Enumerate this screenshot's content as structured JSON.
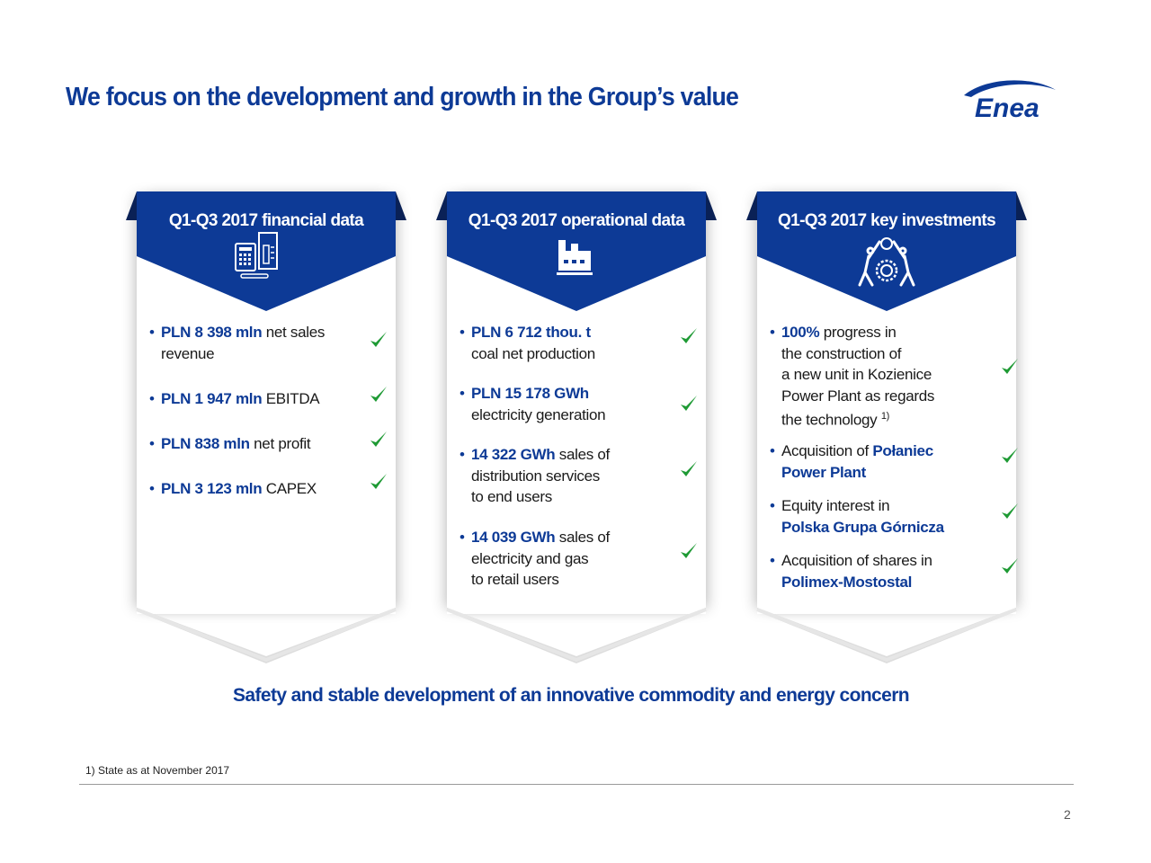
{
  "title": "We focus on the development and growth in the Group’s value",
  "logo": "Enea",
  "colors": {
    "brand": "#0d3a96",
    "check": "#1e9a34"
  },
  "columns": [
    {
      "heading": "Q1-Q3 2017 financial data",
      "icon": "calculator-document-icon",
      "items": [
        {
          "lines": [
            [
              {
                "t": "PLN 8 398 mln",
                "b": true
              },
              {
                "t": " net sales"
              }
            ],
            [
              {
                "t": "revenue"
              }
            ]
          ]
        },
        {
          "lines": [
            [
              {
                "t": "PLN 1 947 mln",
                "b": true
              },
              {
                "t": " EBITDA"
              }
            ]
          ]
        },
        {
          "lines": [
            [
              {
                "t": "PLN 838 mln",
                "b": true
              },
              {
                "t": " net profit"
              }
            ]
          ]
        },
        {
          "lines": [
            [
              {
                "t": "PLN 3 123 mln",
                "b": true
              },
              {
                "t": " CAPEX"
              }
            ]
          ]
        }
      ]
    },
    {
      "heading": "Q1-Q3 2017 operational data",
      "icon": "factory-icon",
      "items": [
        {
          "lines": [
            [
              {
                "t": "PLN 6 712 thou. t",
                "b": true
              }
            ],
            [
              {
                "t": "coal net production"
              }
            ]
          ]
        },
        {
          "lines": [
            [
              {
                "t": "PLN 15 178 GWh",
                "b": true
              }
            ],
            [
              {
                "t": "electricity generation"
              }
            ]
          ]
        },
        {
          "lines": [
            [
              {
                "t": "14 322 GWh",
                "b": true
              },
              {
                "t": " sales of"
              }
            ],
            [
              {
                "t": "distribution services"
              }
            ],
            [
              {
                "t": "to end users"
              }
            ]
          ]
        },
        {
          "lines": [
            [
              {
                "t": "14 039 GWh",
                "b": true
              },
              {
                "t": " sales of"
              }
            ],
            [
              {
                "t": "electricity and gas"
              }
            ],
            [
              {
                "t": "to retail users"
              }
            ]
          ]
        }
      ]
    },
    {
      "heading": "Q1-Q3 2017 key investments",
      "icon": "people-gears-icon",
      "items": [
        {
          "lines": [
            [
              {
                "t": "100%",
                "b": true
              },
              {
                "t": " progress in"
              }
            ],
            [
              {
                "t": "the construction of"
              }
            ],
            [
              {
                "t": "a new unit in Kozienice"
              }
            ],
            [
              {
                "t": "Power Plant as regards"
              }
            ],
            [
              {
                "t": "the technology "
              },
              {
                "t": "1)",
                "sup": true
              }
            ]
          ]
        },
        {
          "lines": [
            [
              {
                "t": "Acquisition of "
              },
              {
                "t": "Połaniec",
                "b": true
              }
            ],
            [
              {
                "t": "Power Plant",
                "b": true
              }
            ]
          ]
        },
        {
          "lines": [
            [
              {
                "t": "Equity interest in"
              }
            ],
            [
              {
                "t": "Polska Grupa Górnicza",
                "b": true
              }
            ]
          ]
        },
        {
          "lines": [
            [
              {
                "t": "Acquisition of shares in"
              }
            ],
            [
              {
                "t": "Polimex-Mostostal",
                "b": true
              }
            ]
          ]
        }
      ]
    }
  ],
  "slogan": "Safety and stable development of an innovative commodity and energy concern",
  "footnote": "1) State as at November 2017",
  "page_number": "2"
}
